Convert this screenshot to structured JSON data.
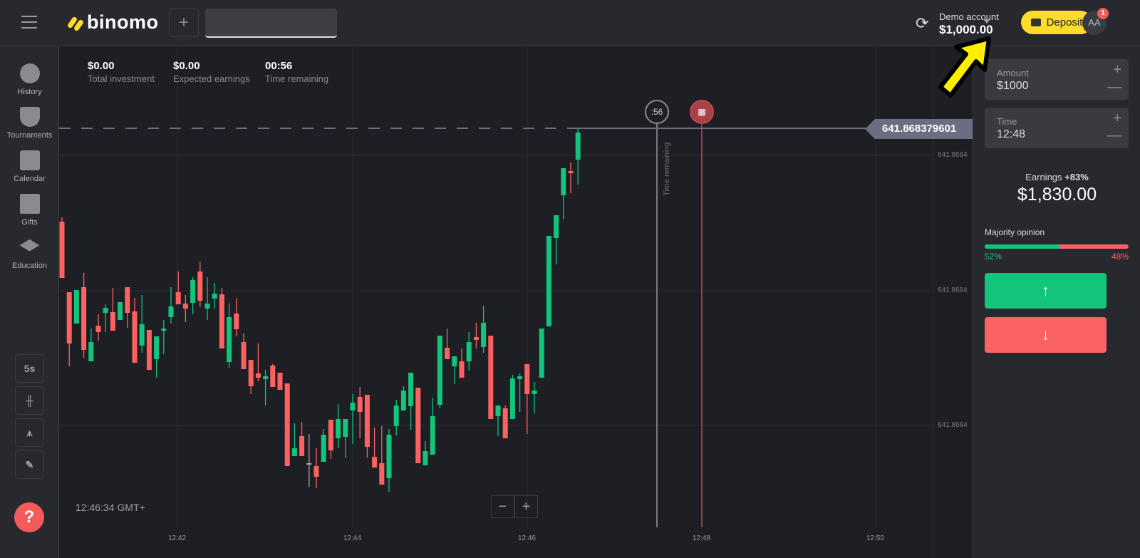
{
  "header": {
    "logo": "binomo",
    "add_label": "+",
    "account_label": "Demo account",
    "balance": "$1,000.00",
    "deposit": "Deposit",
    "avatar": "AA",
    "notifications": "1"
  },
  "sidebar": {
    "items": [
      {
        "label": "History",
        "icon": "clock-icon"
      },
      {
        "label": "Tournaments",
        "icon": "trophy-icon"
      },
      {
        "label": "Calendar",
        "icon": "calendar-icon"
      },
      {
        "label": "Gifts",
        "icon": "gift-icon"
      },
      {
        "label": "Education",
        "icon": "graduation-cap-icon"
      }
    ],
    "tools": {
      "interval": "5s"
    },
    "help": "?"
  },
  "stats": [
    {
      "value": "$0.00",
      "label": "Total investment"
    },
    {
      "value": "$0.00",
      "label": "Expected earnings"
    },
    {
      "value": "00:56",
      "label": "Time remaining"
    }
  ],
  "chart": {
    "current_price": "641.868379601",
    "timer": ":56",
    "time_remaining_label": "Time remaining",
    "clock": "12:46:34 GMT+",
    "zoom_out": "−",
    "zoom_in": "+",
    "y_ticks": [
      "641.8684",
      "641.8684",
      "641.8684"
    ],
    "x_ticks": [
      "12:42",
      "12:44",
      "12:46",
      "12:48",
      "12:50"
    ]
  },
  "chart_data": {
    "type": "candlestick",
    "interval": "5s",
    "first_candle": "12:40:40",
    "up_color": "#13c47b",
    "down_color": "#fd6262",
    "candles": [
      [
        641.8683669,
        641.868359,
        641.8683675,
        641.868359
      ],
      [
        641.868357,
        641.8683498,
        641.868357,
        641.8683466
      ],
      [
        641.8683526,
        641.8683573,
        641.8683573,
        641.8683526
      ],
      [
        641.8683577,
        641.8683489,
        641.8683597,
        641.8683478
      ],
      [
        641.8683473,
        641.86835,
        641.8683519,
        641.8683473
      ],
      [
        641.8683523,
        641.8683514,
        641.8683539,
        641.8683502
      ],
      [
        641.8683541,
        641.8683548,
        641.8683553,
        641.8683514
      ],
      [
        641.8683542,
        641.8683516,
        641.8683576,
        641.8683516
      ],
      [
        641.8683531,
        641.8683556,
        641.8683556,
        641.8683531
      ],
      [
        641.8683577,
        641.8683541,
        641.8683577,
        641.868352
      ],
      [
        641.8683543,
        641.8683471,
        641.8683562,
        641.8683471
      ],
      [
        641.8683495,
        641.8683525,
        641.8683566,
        641.8683485
      ],
      [
        641.8683517,
        641.8683461,
        641.8683517,
        641.8683461
      ],
      [
        641.8683476,
        641.8683508,
        641.8683508,
        641.868345
      ],
      [
        641.8683516,
        641.8683519,
        641.8683531,
        641.8683483
      ],
      [
        641.8683535,
        641.868355,
        641.8683577,
        641.8683526
      ],
      [
        641.868357,
        641.8683553,
        641.8683599,
        641.8683553
      ],
      [
        641.8683554,
        641.8683547,
        641.8683566,
        641.8683528
      ],
      [
        641.8683555,
        641.8683587,
        641.8683591,
        641.8683539
      ],
      [
        641.8683599,
        641.8683558,
        641.8683613,
        641.8683549
      ],
      [
        641.8683547,
        641.8683554,
        641.8683591,
        641.8683531
      ],
      [
        641.8683561,
        641.8683568,
        641.8683583,
        641.8683547
      ],
      [
        641.8683567,
        641.8683491,
        641.8683576,
        641.8683491
      ],
      [
        641.8683472,
        641.8683535,
        641.8683554,
        641.8683464
      ],
      [
        641.868354,
        641.8683518,
        641.8683562,
        641.8683508
      ],
      [
        641.86835,
        641.8683462,
        641.8683512,
        641.8683462
      ],
      [
        641.8683475,
        641.8683438,
        641.8683475,
        641.8683427
      ],
      [
        641.8683456,
        641.868345,
        641.8683498,
        641.8683445
      ],
      [
        641.8683448,
        641.8683452,
        641.8683461,
        641.8683411
      ],
      [
        641.8683467,
        641.8683437,
        641.8683469,
        641.8683437
      ],
      [
        641.8683457,
        641.8683433,
        641.8683457,
        641.8683433
      ],
      [
        641.8683442,
        641.8683326,
        641.8683442,
        641.8683326
      ],
      [
        641.868334,
        641.8683351,
        641.8683386,
        641.868334
      ],
      [
        641.8683368,
        641.868334,
        641.8683388,
        641.868334
      ],
      [
        641.868333,
        641.868333,
        641.8683371,
        641.8683297
      ],
      [
        641.8683326,
        641.8683311,
        641.8683351,
        641.8683295
      ],
      [
        641.8683332,
        641.868337,
        641.8683378,
        641.8683332
      ],
      [
        641.8683391,
        641.8683348,
        641.8683391,
        641.8683336
      ],
      [
        641.8683365,
        641.8683392,
        641.8683413,
        641.8683351
      ],
      [
        641.8683367,
        641.8683392,
        641.8683392,
        641.8683337
      ],
      [
        641.8683404,
        641.8683415,
        641.8683427,
        641.8683357
      ],
      [
        641.8683423,
        641.8683402,
        641.8683437,
        641.8683365
      ],
      [
        641.8683426,
        641.8683353,
        641.8683426,
        641.8683338
      ],
      [
        641.8683339,
        641.8683324,
        641.868338,
        641.8683324
      ],
      [
        641.868333,
        641.86833,
        641.8683382,
        641.86833
      ],
      [
        641.8683309,
        641.868337,
        641.8683378,
        641.868329
      ],
      [
        641.8683382,
        641.8683411,
        641.8683419,
        641.8683369
      ],
      [
        641.8683404,
        641.8683432,
        641.8683438,
        641.8683404
      ],
      [
        641.868341,
        641.8683457,
        641.8683457,
        641.8683377
      ],
      [
        641.8683436,
        641.868333,
        641.8683436,
        641.868333
      ],
      [
        641.8683327,
        641.8683347,
        641.8683361,
        641.8683327
      ],
      [
        641.8683342,
        641.8683396,
        641.8683422,
        641.8683342
      ],
      [
        641.8683412,
        641.8683509,
        641.8683509,
        641.8683407
      ],
      [
        641.8683492,
        641.8683476,
        641.8683519,
        641.8683476
      ],
      [
        641.8683466,
        641.868348,
        641.868348,
        641.8683441
      ],
      [
        641.8683473,
        641.868345,
        641.8683491,
        641.868345
      ],
      [
        641.8683473,
        641.86835,
        641.8683514,
        641.868346
      ],
      [
        641.8683507,
        641.8683503,
        641.8683527,
        641.8683491
      ],
      [
        641.8683493,
        641.8683527,
        641.8683551,
        641.8683485
      ],
      [
        641.8683509,
        641.8683392,
        641.8683509,
        641.8683392
      ],
      [
        641.8683396,
        641.8683411,
        641.8683411,
        641.8683368
      ],
      [
        641.8683407,
        641.8683365,
        641.8683411,
        641.8683365
      ],
      [
        641.8683392,
        641.8683449,
        641.8683454,
        641.8683392
      ],
      [
        641.8683448,
        641.8683452,
        641.8683456,
        641.8683402
      ],
      [
        641.8683469,
        641.8683427,
        641.8683469,
        641.8683371
      ],
      [
        641.8683427,
        641.8683432,
        641.8683444,
        641.86834
      ],
      [
        641.868345,
        641.8683519,
        641.8683519,
        641.868345
      ],
      [
        641.8683522,
        641.8683649,
        641.8683649,
        641.8683522
      ],
      [
        641.8683646,
        641.8683678,
        641.8683678,
        641.8683609
      ],
      [
        641.8683706,
        641.8683744,
        641.8683744,
        641.8683672
      ],
      [
        641.868374,
        641.8683737,
        641.8683752,
        641.8683709
      ],
      [
        641.8683756,
        641.8683794,
        641.86838,
        641.8683721
      ]
    ]
  },
  "panel": {
    "amount_label": "Amount",
    "amount": "$1000",
    "time_label": "Time",
    "time": "12:48",
    "plus": "+",
    "minus": "—",
    "earnings_label": "Earnings",
    "earnings_pct": "+83%",
    "earnings": "$1,830.00",
    "majority_label": "Majority opinion",
    "up_pct": "52%",
    "down_pct": "48%",
    "up_share": 52,
    "up_btn": "↑",
    "down_btn": "↓"
  }
}
